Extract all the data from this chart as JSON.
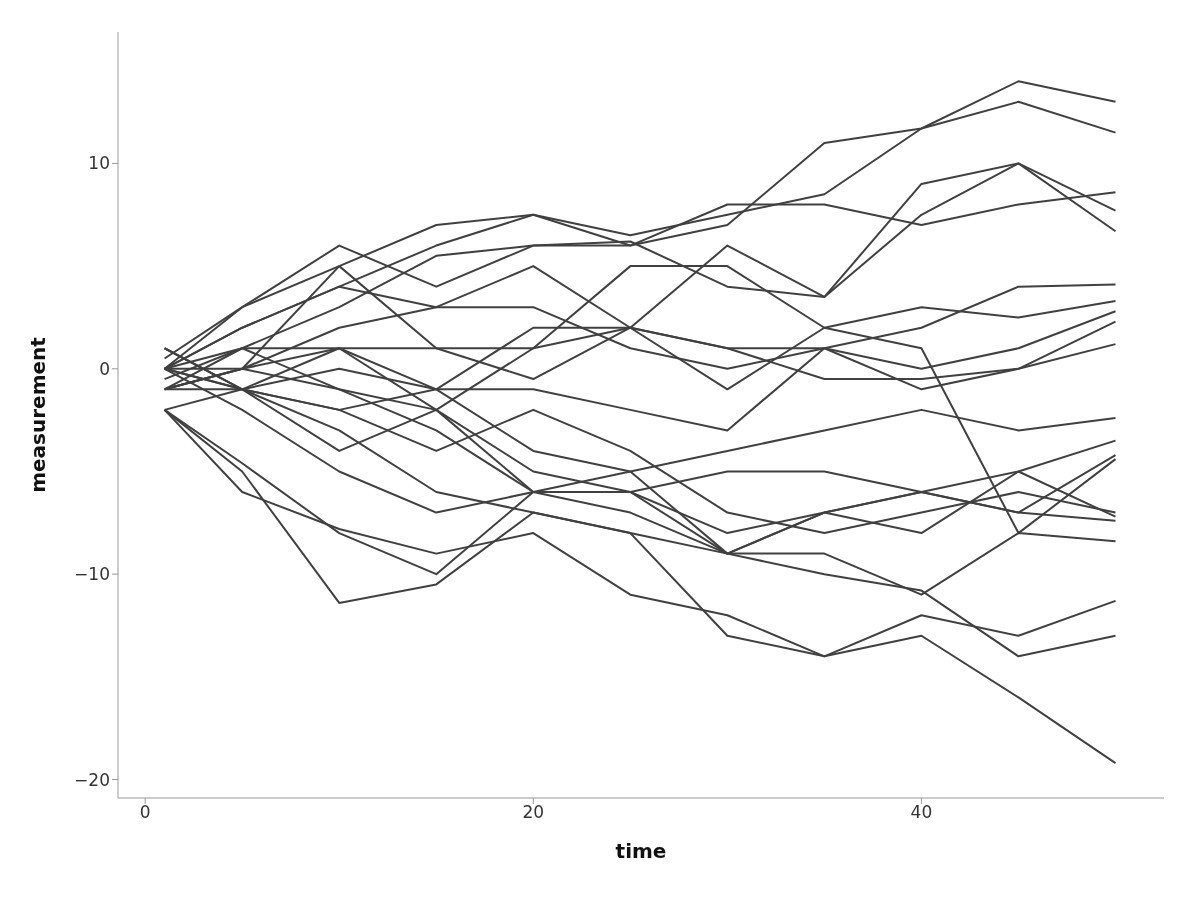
{
  "chart_data": {
    "type": "line",
    "xlabel": "time",
    "ylabel": "measurement",
    "x": [
      1,
      5,
      10,
      15,
      20,
      25,
      30,
      35,
      40,
      45,
      50
    ],
    "xlim": [
      -1.4,
      52.5
    ],
    "xticks": [
      0,
      20,
      40
    ],
    "ylim": [
      -20.9,
      16.4
    ],
    "yticks": [
      -20,
      -10,
      0,
      10
    ],
    "line_style": "solid",
    "series": [
      {
        "color": "#404040",
        "values": [
          0,
          2,
          4,
          6,
          7.5,
          6.5,
          7.5,
          8.5,
          11.7,
          14,
          13
        ]
      },
      {
        "color": "#404040",
        "values": [
          0.5,
          3,
          5,
          7,
          7.5,
          6,
          7,
          11,
          11.7,
          13,
          11.5
        ]
      },
      {
        "color": "#404040",
        "values": [
          -0.5,
          1,
          3,
          5.5,
          6,
          6,
          8,
          8,
          7,
          8,
          8.6
        ]
      },
      {
        "color": "#404040",
        "values": [
          0,
          2,
          4,
          3,
          5,
          2,
          6,
          3.5,
          9,
          10,
          7.7
        ]
      },
      {
        "color": "#404040",
        "values": [
          -1,
          0,
          2,
          3,
          3,
          1,
          0,
          1,
          2,
          4,
          4.1
        ]
      },
      {
        "color": "#404040",
        "values": [
          0,
          1,
          1,
          1,
          -0.5,
          2,
          -1,
          2,
          3,
          2.5,
          3.3
        ]
      },
      {
        "color": "#404040",
        "values": [
          1,
          -1,
          0,
          -1,
          2,
          2,
          1,
          1,
          0,
          1,
          2.8
        ]
      },
      {
        "color": "#404040",
        "values": [
          -1,
          1,
          -1,
          -2,
          1,
          2,
          1,
          -0.5,
          -0.5,
          0,
          2.3
        ]
      },
      {
        "color": "#404040",
        "values": [
          0,
          -1,
          -2,
          -1,
          -1,
          -2,
          -3,
          1,
          -1,
          0,
          1.2
        ]
      },
      {
        "color": "#404040",
        "values": [
          -1,
          0,
          1,
          -1,
          -4,
          -5,
          -4,
          -3,
          -2,
          -3,
          -2.4
        ]
      },
      {
        "color": "#404040",
        "values": [
          -2,
          -1,
          1,
          -2,
          -5,
          -6,
          -5,
          -5,
          -6,
          -5,
          -3.5
        ]
      },
      {
        "color": "#404040",
        "values": [
          -1,
          0,
          -1,
          -3,
          -6,
          -6,
          -8,
          -7,
          -6,
          -7,
          -4.2
        ]
      },
      {
        "color": "#404040",
        "values": [
          0,
          -1,
          -2,
          -4,
          -2,
          -4,
          -7,
          -8,
          -7,
          -6,
          -7
        ]
      },
      {
        "color": "#404040",
        "values": [
          0,
          -2,
          -5,
          -7,
          -6,
          -5,
          -9,
          -7,
          -8,
          -5,
          -7.2
        ]
      },
      {
        "color": "#404040",
        "values": [
          1,
          -1,
          -3,
          -6,
          -7,
          -8,
          -9,
          -7,
          -6,
          -7,
          -7.4
        ]
      },
      {
        "color": "#404040",
        "values": [
          -1,
          -1,
          -4,
          -2,
          -6,
          -7,
          -9,
          -9,
          -11,
          -8,
          -8.4
        ]
      },
      {
        "color": "#404040",
        "values": [
          -2,
          -5,
          -11.4,
          -10.5,
          -7,
          -8,
          -13,
          -14,
          -12,
          -13,
          -11.3
        ]
      },
      {
        "color": "#404040",
        "values": [
          -2,
          -4.6,
          -8,
          -10,
          -6,
          -6,
          -9,
          -10,
          -10.8,
          -14,
          -13
        ]
      },
      {
        "color": "#404040",
        "values": [
          -2,
          -6,
          -7.8,
          -9,
          -8,
          -11,
          -12,
          -14,
          -13,
          -16,
          -19.2
        ]
      },
      {
        "color": "#404040",
        "values": [
          0,
          0,
          5,
          1,
          1,
          5,
          5,
          2,
          1,
          -8,
          -4.4
        ]
      },
      {
        "color": "#404040",
        "values": [
          0,
          3,
          6,
          4,
          6,
          6.2,
          4,
          3.5,
          7.5,
          10,
          6.7
        ]
      }
    ]
  }
}
